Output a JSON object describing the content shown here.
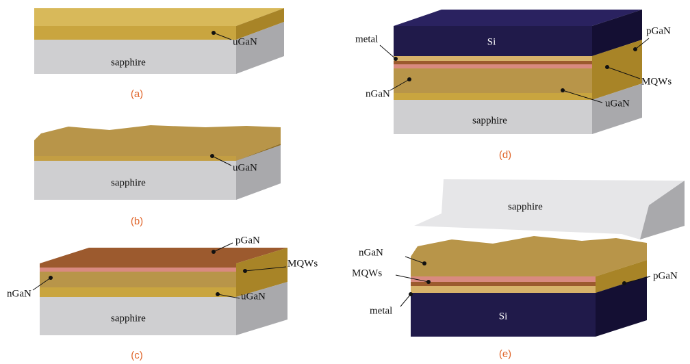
{
  "panels": [
    {
      "caption": "(a)",
      "labels": [
        "uGaN",
        "sapphire"
      ]
    },
    {
      "caption": "(b)",
      "labels": [
        "uGaN",
        "sapphire"
      ]
    },
    {
      "caption": "(c)",
      "labels": [
        "pGaN",
        "MQWs",
        "nGaN",
        "uGaN",
        "sapphire"
      ]
    },
    {
      "caption": "(d)",
      "labels": [
        "Si",
        "metal",
        "pGaN",
        "MQWs",
        "nGaN",
        "uGaN",
        "sapphire"
      ]
    },
    {
      "caption": "(e)",
      "labels": [
        "sapphire",
        "nGaN",
        "MQWs",
        "pGaN",
        "metal",
        "Si"
      ]
    }
  ]
}
